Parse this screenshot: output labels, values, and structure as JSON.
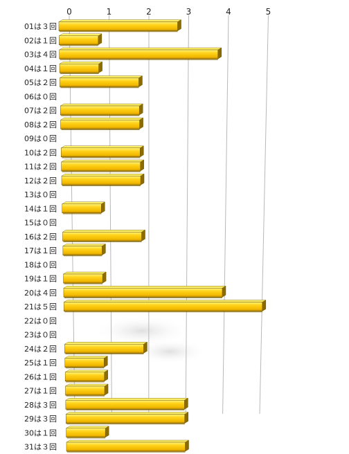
{
  "chart_data": {
    "type": "bar",
    "orientation": "horizontal",
    "title": "",
    "xlabel": "",
    "ylabel": "",
    "x_ticks": [
      "0",
      "1",
      "2",
      "3",
      "4",
      "5"
    ],
    "xlim": [
      0,
      5
    ],
    "grid": true,
    "legend": "none",
    "categories": [
      "01は３回",
      "02は１回",
      "03は４回",
      "04は１回",
      "05は２回",
      "06は０回",
      "07は２回",
      "08は２回",
      "09は０回",
      "10は２回",
      "11は２回",
      "12は２回",
      "13は０回",
      "14は１回",
      "15は０回",
      "16は２回",
      "17は１回",
      "18は０回",
      "19は１回",
      "20は４回",
      "21は５回",
      "22は０回",
      "23は０回",
      "24は２回",
      "25は１回",
      "26は１回",
      "27は１回",
      "28は３回",
      "29は３回",
      "30は１回",
      "31は３回"
    ],
    "values": [
      3,
      1,
      4,
      1,
      2,
      0,
      2,
      2,
      0,
      2,
      2,
      2,
      0,
      1,
      0,
      2,
      1,
      0,
      1,
      4,
      5,
      0,
      0,
      2,
      1,
      1,
      1,
      3,
      3,
      1,
      3
    ],
    "colors": {
      "bar_face": "#ffd21a",
      "bar_top": "#fff06a",
      "bar_bottom": "#8a6a00",
      "bar_edge": "#6e5400",
      "gridline": "#b8b8b8"
    }
  }
}
